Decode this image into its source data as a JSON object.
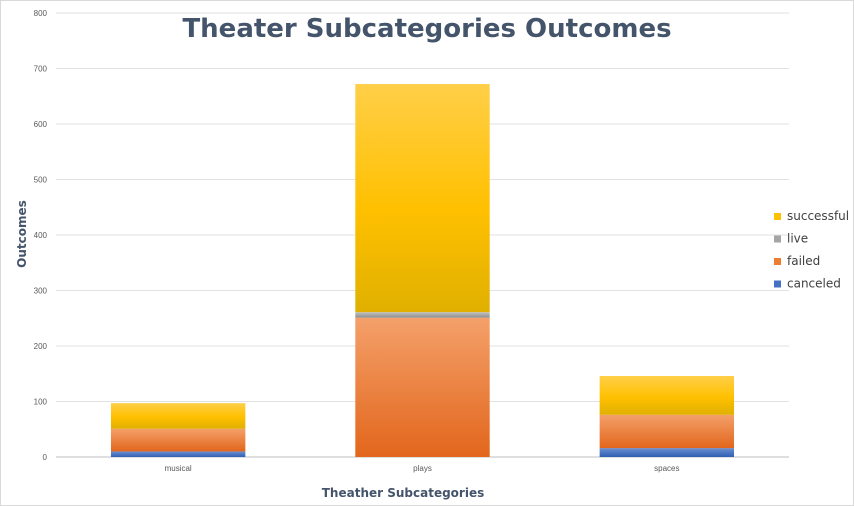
{
  "chart_data": {
    "type": "bar",
    "stacked": true,
    "title": "Theater Subcategories Outcomes",
    "xlabel": "Theather Subcategories",
    "ylabel": "Outcomes",
    "categories": [
      "musical",
      "plays",
      "spaces"
    ],
    "series": [
      {
        "name": "canceled",
        "values": [
          10,
          0,
          16
        ],
        "color": "#4472c4"
      },
      {
        "name": "failed",
        "values": [
          41,
          251,
          60
        ],
        "color": "#ed7d31"
      },
      {
        "name": "live",
        "values": [
          0,
          10,
          0
        ],
        "color": "#a5a5a5"
      },
      {
        "name": "successful",
        "values": [
          46,
          411,
          70
        ],
        "color": "#ffc000"
      }
    ],
    "ylim": [
      0,
      800
    ],
    "yticks": [
      0,
      100,
      200,
      300,
      400,
      500,
      600,
      700,
      800
    ],
    "grid": true,
    "legend_position": "right"
  }
}
